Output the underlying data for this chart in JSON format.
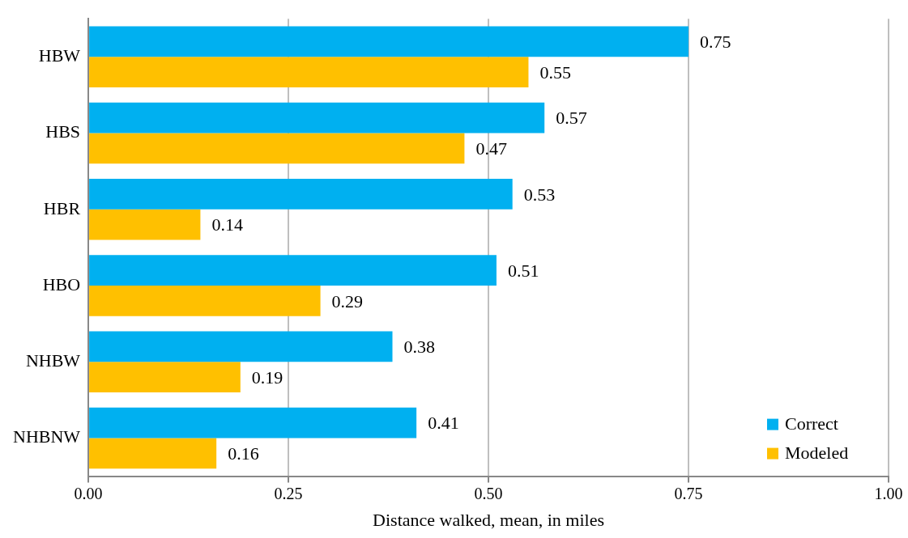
{
  "chart_data": {
    "type": "bar",
    "orientation": "horizontal",
    "xlabel": "Distance walked, mean, in miles",
    "categories": [
      "HBW",
      "HBS",
      "HBR",
      "HBO",
      "NHBW",
      "NHBNW"
    ],
    "series": [
      {
        "name": "Correct",
        "color": "#00b0f0",
        "values": [
          0.75,
          0.57,
          0.53,
          0.51,
          0.38,
          0.41
        ]
      },
      {
        "name": "Modeled",
        "color": "#ffc000",
        "values": [
          0.55,
          0.47,
          0.14,
          0.29,
          0.19,
          0.16
        ]
      }
    ],
    "xlim": [
      0,
      1
    ],
    "xticks": [
      {
        "value": 0,
        "label": "0.00"
      },
      {
        "value": 0.25,
        "label": "0.25"
      },
      {
        "value": 0.5,
        "label": "0.50"
      },
      {
        "value": 0.75,
        "label": "0.75"
      },
      {
        "value": 1,
        "label": "1.00"
      }
    ],
    "grid": "x",
    "legend": "bottom right",
    "data_labels": true
  }
}
